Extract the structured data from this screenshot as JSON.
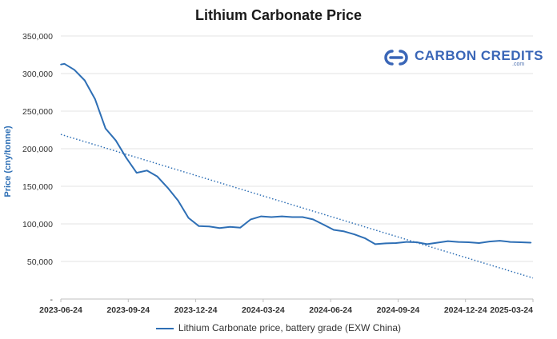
{
  "chart_data": {
    "type": "line",
    "title": "Lithium Carbonate Price",
    "ylabel": "Price (cny/tonne)",
    "xlabel": "",
    "ylim": [
      0,
      350000
    ],
    "y_ticks": [
      0,
      50000,
      100000,
      150000,
      200000,
      250000,
      300000,
      350000
    ],
    "y_tick_labels": [
      "-",
      "50,000",
      "100,000",
      "150,000",
      "200,000",
      "250,000",
      "300,000",
      "350,000"
    ],
    "x_tick_labels": [
      "2023-06-24",
      "2023-09-24",
      "2023-12-24",
      "2024-03-24",
      "2024-06-24",
      "2024-09-24",
      "2024-12-24",
      "2025-03-24"
    ],
    "x_tick_positions": [
      0,
      13,
      26,
      39,
      52,
      65,
      78,
      91
    ],
    "xlim": [
      0,
      91
    ],
    "grid": true,
    "legend_position": "bottom",
    "series": [
      {
        "name": "Lithium Carbonate price, battery grade (EXW China)",
        "color": "#2e6fb5",
        "style": "solid",
        "x": [
          0,
          0.7,
          2.6,
          4.6,
          6.6,
          8.6,
          10.6,
          12.6,
          14.6,
          16.6,
          18.6,
          20.6,
          22.6,
          24.6,
          26.6,
          28.6,
          30.6,
          32.6,
          34.6,
          36.6,
          38.6,
          40.6,
          42.6,
          44.6,
          46.6,
          48.6,
          50.6,
          52.6,
          54.6,
          56.6,
          58.6,
          60.6,
          62.6,
          64.6,
          66.6,
          68.6,
          70.6,
          72.6,
          74.6,
          76.6,
          78.6,
          80.6,
          82.6,
          84.6,
          86.6,
          88.6,
          90.6
        ],
        "values": [
          312000,
          313000,
          305000,
          291000,
          266000,
          227000,
          211000,
          188000,
          168000,
          171000,
          163000,
          148000,
          131000,
          108000,
          97000,
          96500,
          94500,
          96000,
          95000,
          106000,
          110000,
          109000,
          110000,
          109000,
          109000,
          106000,
          99000,
          92000,
          90000,
          86000,
          81000,
          73000,
          74000,
          74500,
          76000,
          75500,
          73000,
          75000,
          77000,
          76000,
          75500,
          74500,
          76500,
          77500,
          76000,
          75500,
          75000
        ]
      },
      {
        "name": "Linear trend",
        "color": "#2e6fb5",
        "style": "dotted",
        "x": [
          0,
          91
        ],
        "values": [
          219000,
          28000
        ]
      }
    ]
  },
  "logo": {
    "text": "CARBON CREDITS",
    "sub": ".com",
    "color": "#3a66b7"
  }
}
